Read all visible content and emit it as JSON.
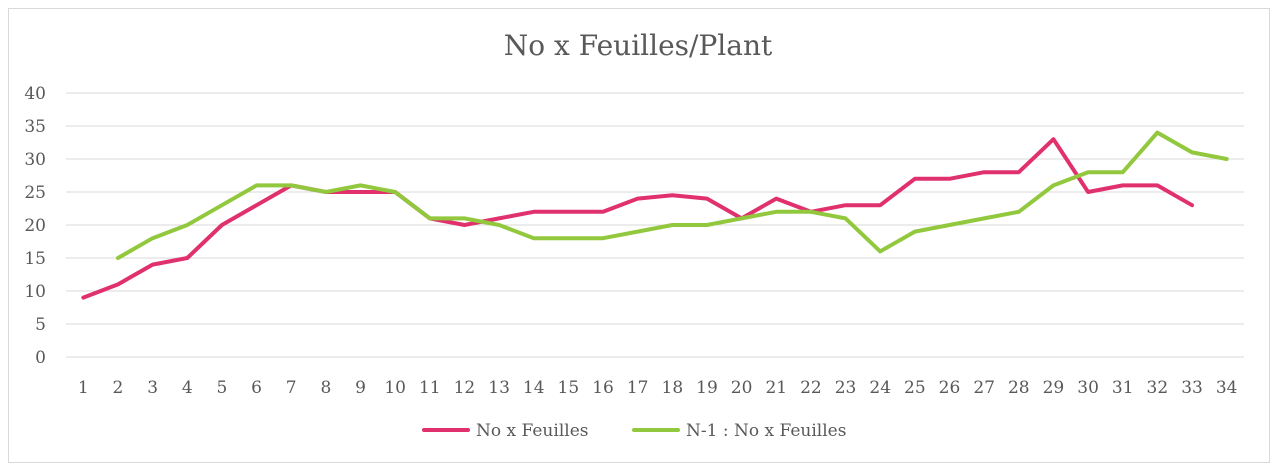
{
  "chart_data": {
    "type": "line",
    "title": "No x Feuilles/Plant",
    "xlabel": "",
    "ylabel": "",
    "categories": [
      "1",
      "2",
      "3",
      "4",
      "5",
      "6",
      "7",
      "8",
      "9",
      "10",
      "11",
      "12",
      "13",
      "14",
      "15",
      "16",
      "17",
      "18",
      "19",
      "20",
      "21",
      "22",
      "23",
      "24",
      "25",
      "26",
      "27",
      "28",
      "29",
      "30",
      "31",
      "32",
      "33",
      "34"
    ],
    "ylim": [
      0,
      40
    ],
    "yticks": [
      "0",
      "5",
      "10",
      "15",
      "20",
      "25",
      "30",
      "35",
      "40"
    ],
    "grid": true,
    "legend_position": "bottom",
    "series": [
      {
        "name": "No x Feuilles",
        "color": "#e0306e",
        "values": [
          9,
          11,
          14,
          15,
          20,
          23,
          26,
          25,
          25,
          25,
          21,
          20,
          21,
          22,
          22,
          22,
          24,
          24.5,
          24,
          21,
          24,
          22,
          23,
          23,
          27,
          27,
          28,
          28,
          33,
          25,
          26,
          26,
          23,
          null
        ]
      },
      {
        "name": "N-1 : No x Feuilles",
        "color": "#92c83e",
        "values": [
          null,
          15,
          18,
          20,
          23,
          26,
          26,
          25,
          26,
          25,
          21,
          21,
          20,
          18,
          18,
          18,
          19,
          20,
          20,
          21,
          22,
          22,
          21,
          16,
          19,
          20,
          21,
          22,
          26,
          28,
          28,
          34,
          31,
          30
        ]
      }
    ]
  }
}
